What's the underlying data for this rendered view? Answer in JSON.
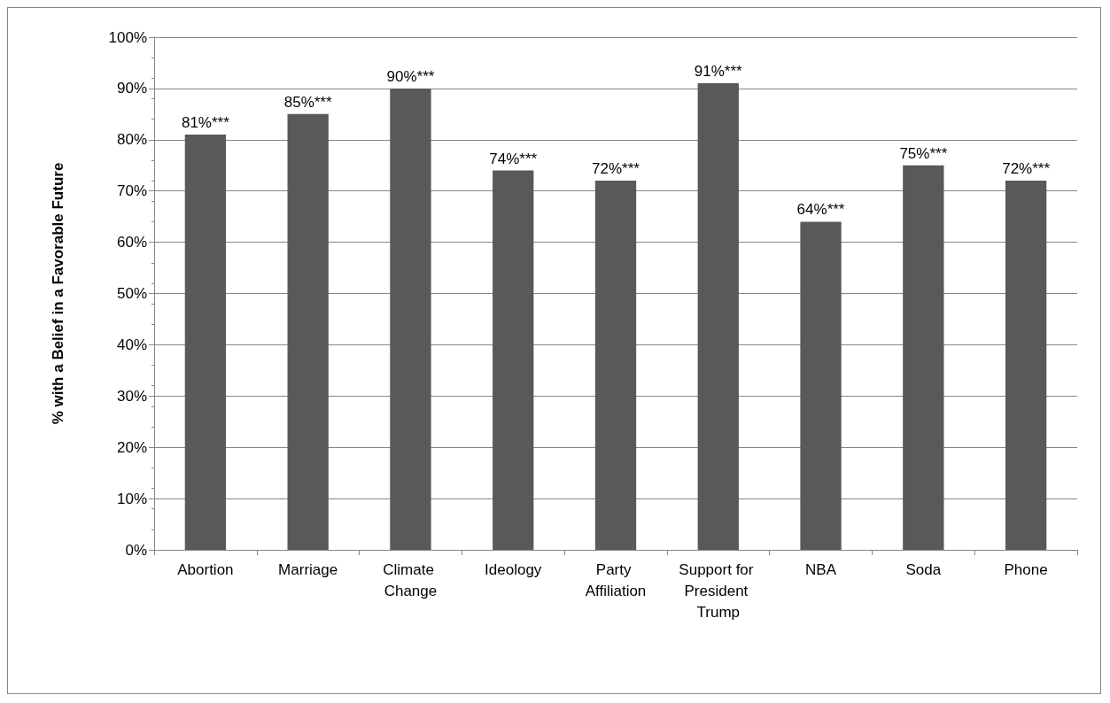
{
  "chart_data": {
    "type": "bar",
    "ylabel": "% with a Belief in a Favorable Future",
    "categories": [
      "Abortion",
      "Marriage",
      "Climate Change",
      "Ideology",
      "Party Affiliation",
      "Support for President Trump",
      "NBA",
      "Soda",
      "Phone"
    ],
    "values": [
      81,
      85,
      90,
      74,
      72,
      91,
      64,
      75,
      72
    ],
    "value_labels": [
      "81%***",
      "85%***",
      "90%***",
      "74%***",
      "72%***",
      "91%***",
      "64%***",
      "75%***",
      "72%***"
    ],
    "color": "#595959",
    "ylim": [
      0,
      100
    ],
    "yticks": [
      {
        "value": 0,
        "label": "0%"
      },
      {
        "value": 10,
        "label": "10%"
      },
      {
        "value": 20,
        "label": "20%"
      },
      {
        "value": 30,
        "label": "30%"
      },
      {
        "value": 40,
        "label": "40%"
      },
      {
        "value": 50,
        "label": "50%"
      },
      {
        "value": 60,
        "label": "60%"
      },
      {
        "value": 70,
        "label": "70%"
      },
      {
        "value": 80,
        "label": "80%"
      },
      {
        "value": 90,
        "label": "90%"
      },
      {
        "value": 100,
        "label": "100%"
      }
    ],
    "grid": "y"
  }
}
